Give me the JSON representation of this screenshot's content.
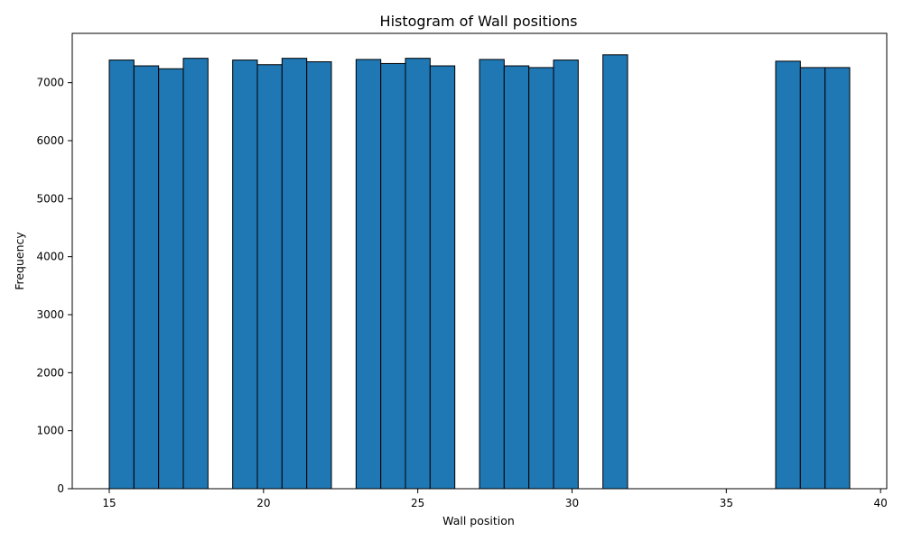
{
  "chart_data": {
    "type": "bar",
    "title": "Histogram of Wall positions",
    "xlabel": "Wall position",
    "ylabel": "Frequency",
    "xlim": [
      13.8,
      40.2
    ],
    "ylim": [
      0,
      7850
    ],
    "xticks": [
      15,
      20,
      25,
      30,
      35,
      40
    ],
    "yticks": [
      0,
      1000,
      2000,
      3000,
      4000,
      5000,
      6000,
      7000
    ],
    "bin_edges": [
      15.0,
      15.8,
      16.6,
      17.4,
      18.2,
      19.0,
      19.8,
      20.6,
      21.4,
      22.2,
      23.0,
      23.8,
      24.6,
      25.4,
      26.2,
      27.0,
      27.8,
      28.6,
      29.4,
      30.2,
      31.0,
      31.8,
      32.6,
      33.4,
      34.2,
      35.0,
      35.8,
      36.6,
      37.4,
      38.2,
      39.0
    ],
    "values": [
      7390,
      7290,
      7240,
      7420,
      0,
      7390,
      7310,
      7420,
      7360,
      0,
      7400,
      7330,
      7420,
      7290,
      0,
      7400,
      7290,
      7260,
      7390,
      0,
      7480,
      0,
      0,
      0,
      0,
      0,
      0,
      7370,
      7260,
      7260
    ],
    "bar_color": "#1f77b4",
    "edge_color": "#000000",
    "grid": false
  }
}
